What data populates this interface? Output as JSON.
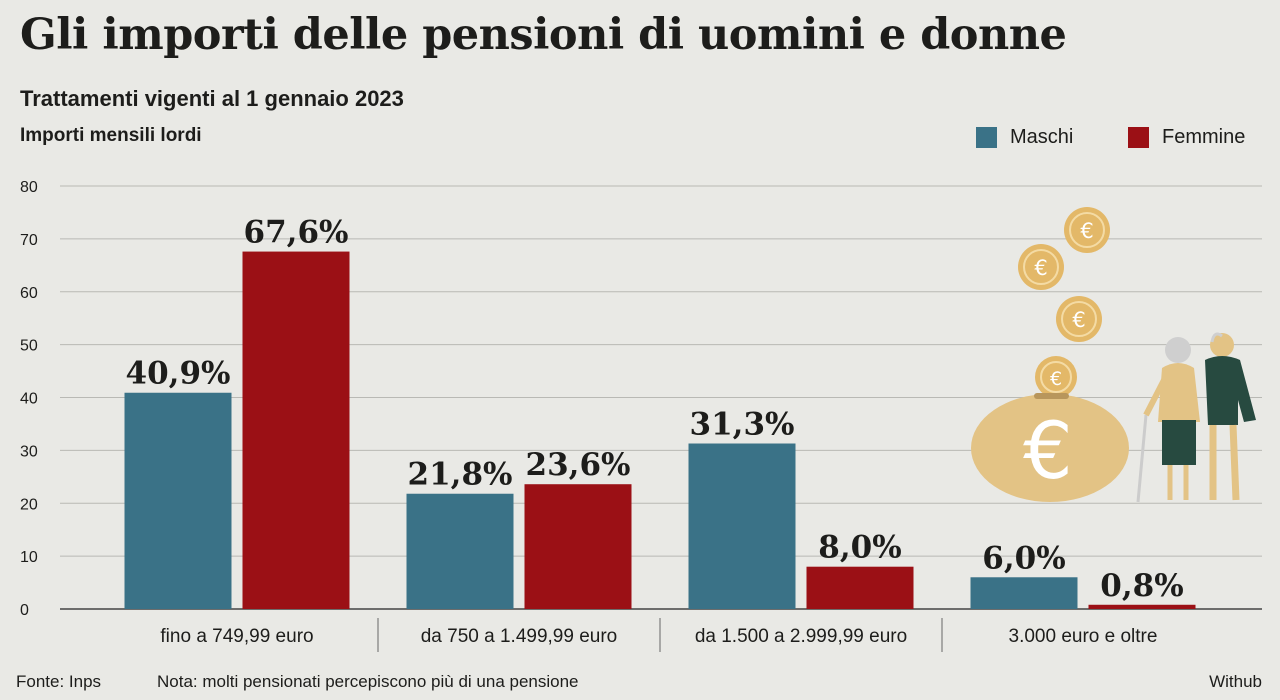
{
  "title": "Gli importi delle pensioni di uomini e donne",
  "subtitle": "Trattamenti vigenti al 1 gennaio 2023",
  "unit_label": "Importi mensili lordi",
  "legend": [
    {
      "name": "Maschi",
      "color": "#3a7287"
    },
    {
      "name": "Femmine",
      "color": "#9b1015"
    }
  ],
  "footer": {
    "source": "Fonte: Inps",
    "note": "Nota: molti pensionati percepiscono più di una pensione",
    "credit": "Withub"
  },
  "chart_data": {
    "type": "bar",
    "title": "Gli importi delle pensioni di uomini e donne",
    "subtitle": "Trattamenti vigenti al 1 gennaio 2023",
    "ylabel": "Importi mensili lordi",
    "ylim": [
      0,
      80
    ],
    "yticks": [
      0,
      10,
      20,
      30,
      40,
      50,
      60,
      70,
      80
    ],
    "grid": true,
    "legend_position": "top-right",
    "categories": [
      "fino a 749,99 euro",
      "da 750 a 1.499,99 euro",
      "da 1.500 a 2.999,99 euro",
      "3.000 euro e oltre"
    ],
    "series": [
      {
        "name": "Maschi",
        "color": "#3a7287",
        "values": [
          40.9,
          21.8,
          31.3,
          6.0
        ],
        "labels": [
          "40,9%",
          "21,8%",
          "31,3%",
          "6,0%"
        ]
      },
      {
        "name": "Femmine",
        "color": "#9b1015",
        "values": [
          67.6,
          23.6,
          8.0,
          0.8
        ],
        "labels": [
          "67,6%",
          "23,6%",
          "8,0%",
          "0,8%"
        ]
      }
    ]
  }
}
